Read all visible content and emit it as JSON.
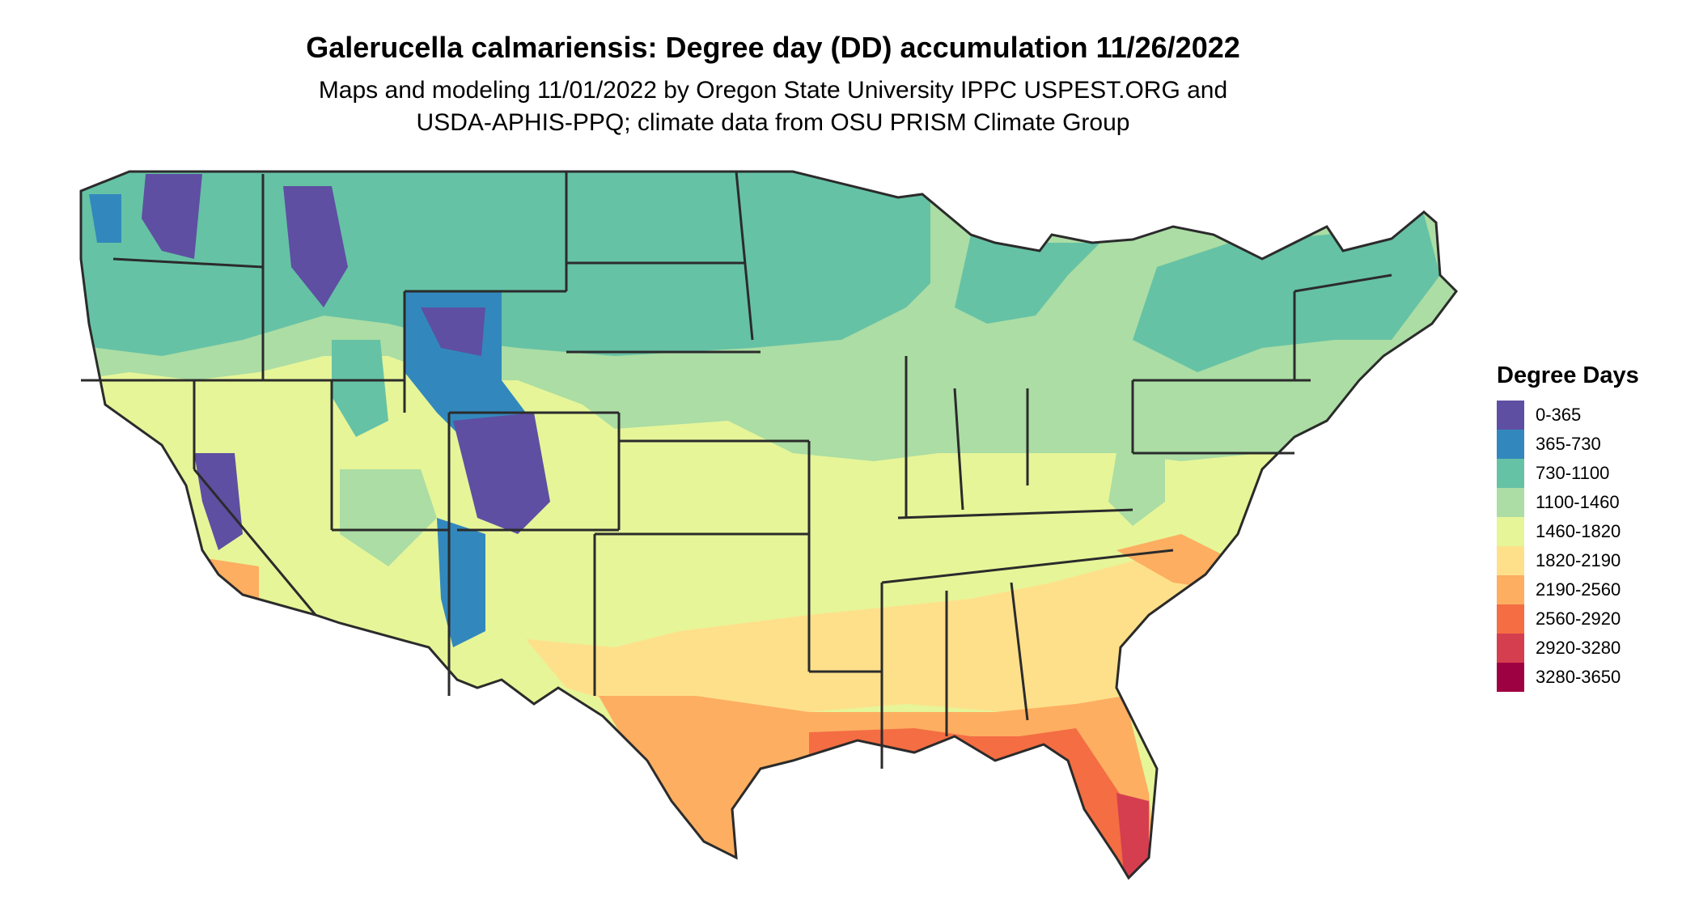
{
  "title": "Galerucella calmariensis: Degree day (DD) accumulation 11/26/2022",
  "subtitle_lines": [
    "Maps and modeling 11/01/2022 by Oregon State University IPPC USPEST.ORG and",
    "USDA-APHIS-PPQ; climate data from OSU PRISM Climate Group"
  ],
  "legend": {
    "title": "Degree Days",
    "items": [
      {
        "label": "0-365",
        "color": "#5e4fa2"
      },
      {
        "label": "365-730",
        "color": "#3288bd"
      },
      {
        "label": "730-1100",
        "color": "#66c2a5"
      },
      {
        "label": "1100-1460",
        "color": "#abdda4"
      },
      {
        "label": "1460-1820",
        "color": "#e6f598"
      },
      {
        "label": "1820-2190",
        "color": "#fee08b"
      },
      {
        "label": "2190-2560",
        "color": "#fdae61"
      },
      {
        "label": "2560-2920",
        "color": "#f46d43"
      },
      {
        "label": "2920-3280",
        "color": "#d53e4f"
      },
      {
        "label": "3280-3650",
        "color": "#9e0142"
      }
    ]
  }
}
